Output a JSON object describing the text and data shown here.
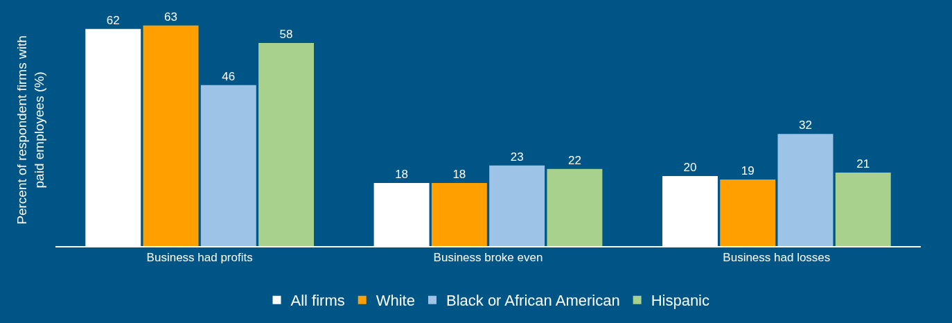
{
  "chart_data": {
    "type": "bar",
    "ylabel": "Percent of respondent firms with paid employees (%)",
    "categories": [
      "Business had profits",
      "Business broke even",
      "Business had losses"
    ],
    "series": [
      {
        "name": "All firms",
        "color": "#ffffff",
        "values": [
          62,
          18,
          20
        ]
      },
      {
        "name": "White",
        "color": "#ffa000",
        "values": [
          63,
          18,
          19
        ]
      },
      {
        "name": "Black or African American",
        "color": "#9dc3e6",
        "values": [
          46,
          23,
          32
        ]
      },
      {
        "name": "Hispanic",
        "color": "#a9d18e",
        "values": [
          58,
          22,
          21
        ]
      }
    ],
    "data_labels": true,
    "grid": false,
    "legend": "bottom",
    "tick_labels": "x"
  }
}
